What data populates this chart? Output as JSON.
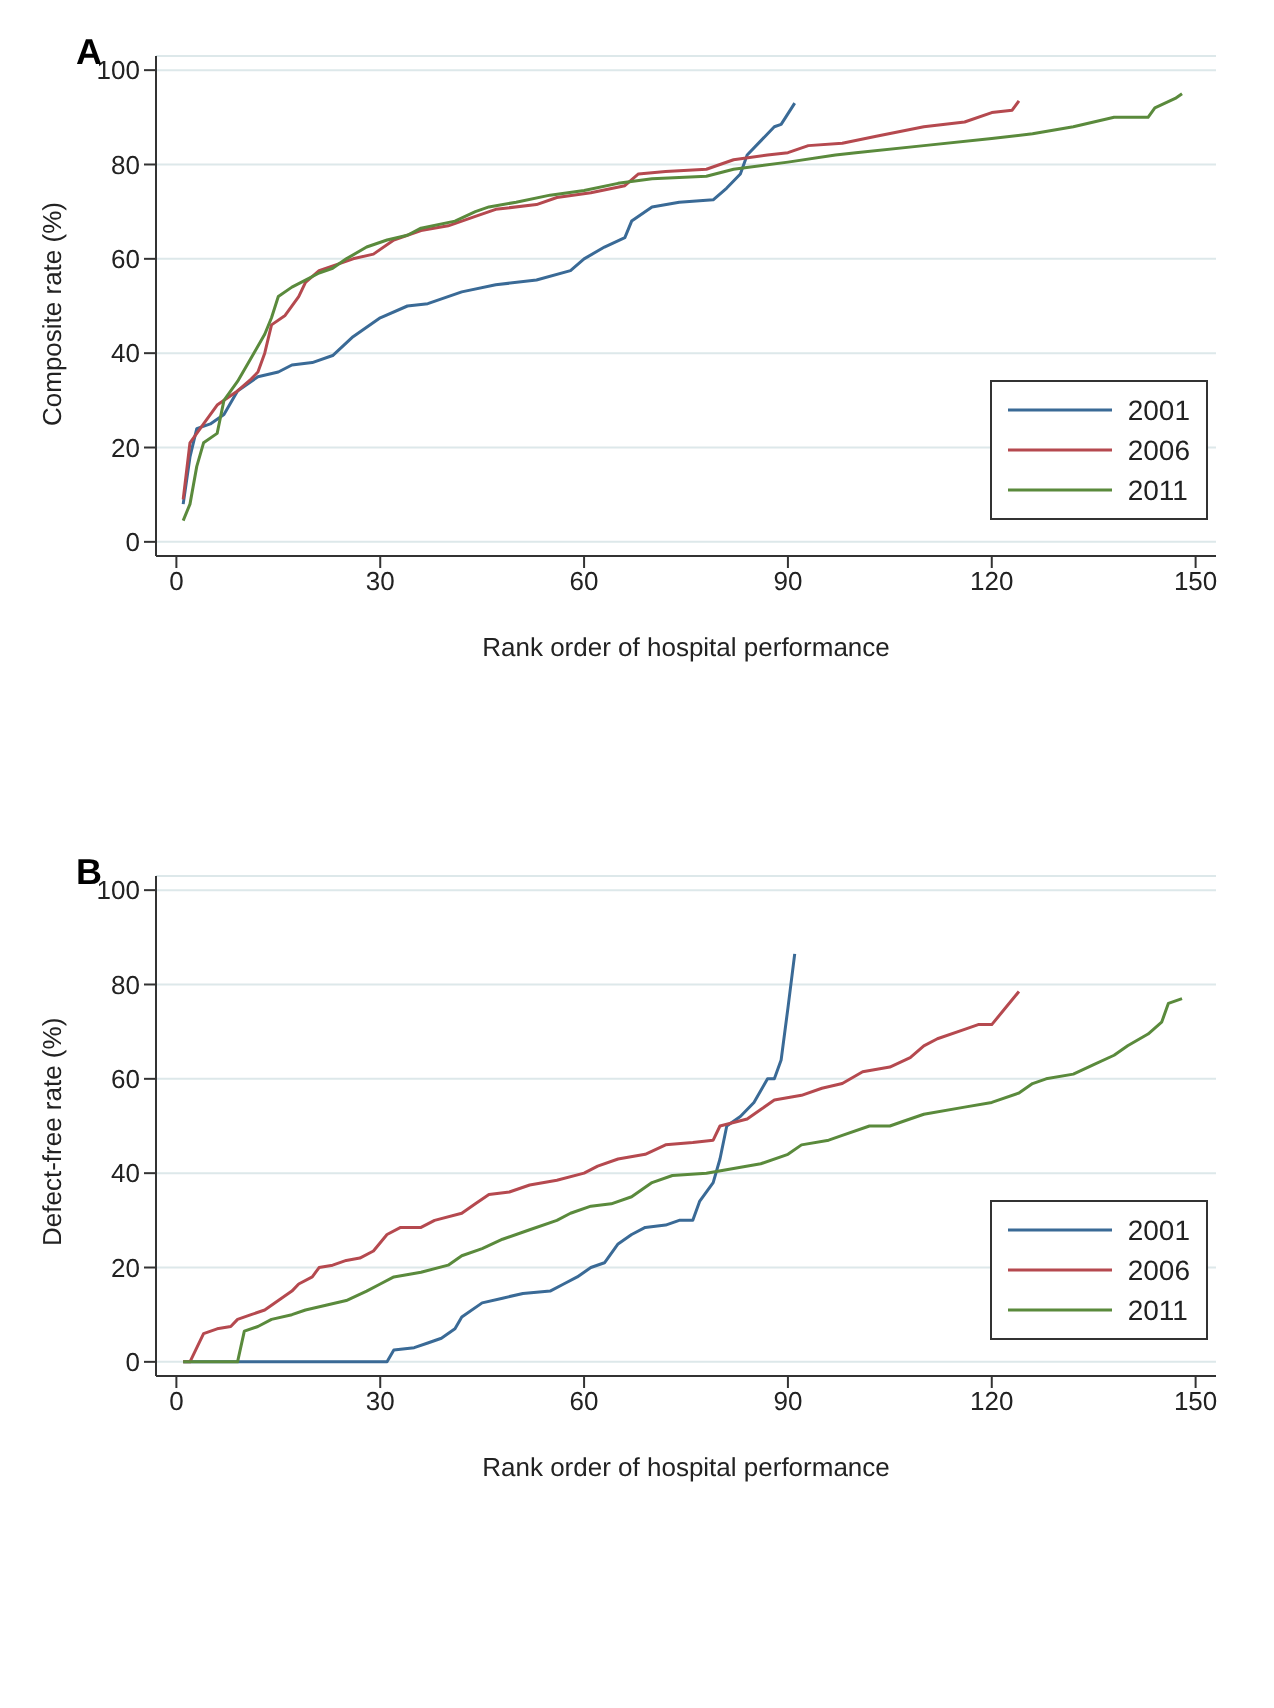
{
  "chart_data": [
    {
      "type": "line",
      "title": "A",
      "xlabel": "Rank order of hospital performance",
      "ylabel": "Composite rate (%)",
      "xlim": [
        -3,
        153
      ],
      "ylim": [
        -3,
        103
      ],
      "xticks": [
        0,
        30,
        60,
        90,
        120,
        150
      ],
      "yticks": [
        0,
        20,
        40,
        60,
        80,
        100
      ],
      "grid": "y",
      "legend": "bottom right",
      "marker": "none",
      "line_style": "solid",
      "series": [
        {
          "name": "2001",
          "color": "#3a6a96",
          "x": [
            1,
            2,
            3,
            5,
            7,
            9,
            12,
            15,
            17,
            20,
            23,
            26,
            30,
            34,
            37,
            42,
            47,
            53,
            58,
            60,
            63,
            66,
            67,
            70,
            74,
            79,
            81,
            83,
            84,
            86,
            88,
            89,
            91
          ],
          "values": [
            8,
            18,
            24,
            25,
            27,
            32,
            35,
            36,
            37.5,
            38,
            39.5,
            43.5,
            47.5,
            50,
            50.5,
            53,
            54.5,
            55.5,
            57.5,
            60,
            62.5,
            64.5,
            68,
            71,
            72,
            72.5,
            75,
            78,
            82,
            85,
            88,
            88.5,
            93
          ]
        },
        {
          "name": "2006",
          "color": "#b5494f",
          "x": [
            1,
            2,
            4,
            6,
            9,
            11,
            12,
            13,
            14,
            16,
            18,
            19,
            21,
            24,
            26,
            29,
            32,
            36,
            40,
            44,
            47,
            53,
            56,
            61,
            66,
            68,
            72,
            78,
            82,
            87,
            90,
            93,
            98,
            103,
            110,
            116,
            120,
            123,
            124
          ],
          "values": [
            9,
            21,
            25,
            29,
            32,
            34.5,
            36,
            40,
            46,
            48,
            52,
            55,
            57.5,
            59,
            60,
            61,
            64,
            66,
            67,
            69,
            70.5,
            71.5,
            73,
            74,
            75.5,
            78,
            78.5,
            79,
            81,
            82,
            82.5,
            84,
            84.5,
            86,
            88,
            89,
            91,
            91.5,
            93.5
          ]
        },
        {
          "name": "2011",
          "color": "#5a8a3c",
          "x": [
            1,
            2,
            3,
            4,
            6,
            7,
            9,
            11,
            13,
            14,
            15,
            17,
            19,
            21,
            23,
            25,
            28,
            31,
            34,
            36,
            41,
            44,
            46,
            50,
            55,
            60,
            65,
            70,
            78,
            82,
            90,
            97,
            100,
            110,
            120,
            126,
            132,
            138,
            143,
            144,
            147,
            148
          ],
          "values": [
            4.5,
            8,
            16,
            21,
            23,
            30,
            34,
            39,
            44,
            47.5,
            52,
            54,
            55.5,
            57,
            58,
            60,
            62.5,
            64,
            65,
            66.5,
            68,
            70,
            71,
            72,
            73.5,
            74.5,
            76,
            77,
            77.5,
            79,
            80.5,
            82,
            82.5,
            84,
            85.5,
            86.5,
            88,
            90,
            90,
            92,
            94,
            95
          ]
        }
      ]
    },
    {
      "type": "line",
      "title": "B",
      "xlabel": "Rank order of hospital performance",
      "ylabel": "Defect-free rate (%)",
      "xlim": [
        -3,
        153
      ],
      "ylim": [
        -3,
        103
      ],
      "xticks": [
        0,
        30,
        60,
        90,
        120,
        150
      ],
      "yticks": [
        0,
        20,
        40,
        60,
        80,
        100
      ],
      "grid": "y",
      "legend": "bottom right",
      "marker": "none",
      "line_style": "solid",
      "series": [
        {
          "name": "2001",
          "color": "#3a6a96",
          "x": [
            1,
            31,
            32,
            35,
            37,
            39,
            41,
            42,
            45,
            48,
            51,
            55,
            57,
            59,
            61,
            63,
            65,
            67,
            69,
            72,
            74,
            76,
            77,
            79,
            80,
            81,
            83,
            85,
            87,
            88,
            89,
            90,
            91
          ],
          "values": [
            0,
            0,
            2.5,
            3,
            4,
            5,
            7,
            9.5,
            12.5,
            13.5,
            14.5,
            15,
            16.5,
            18,
            20,
            21,
            25,
            27,
            28.5,
            29,
            30,
            30,
            34,
            38,
            43,
            50,
            52,
            55,
            60,
            60,
            64,
            75,
            86.5
          ]
        },
        {
          "name": "2006",
          "color": "#b5494f",
          "x": [
            1,
            2,
            4,
            6,
            8,
            9,
            11,
            13,
            15,
            17,
            18,
            20,
            21,
            23,
            25,
            27,
            29,
            31,
            33,
            36,
            38,
            42,
            44,
            46,
            49,
            52,
            56,
            60,
            62,
            65,
            69,
            72,
            76,
            79,
            80,
            84,
            86,
            88,
            92,
            95,
            98,
            101,
            105,
            108,
            110,
            112,
            116,
            118,
            120,
            122,
            124
          ],
          "values": [
            0,
            0,
            6,
            7,
            7.5,
            9,
            10,
            11,
            13,
            15,
            16.5,
            18,
            20,
            20.5,
            21.5,
            22,
            23.5,
            27,
            28.5,
            28.5,
            30,
            31.5,
            33.5,
            35.5,
            36,
            37.5,
            38.5,
            40,
            41.5,
            43,
            44,
            46,
            46.5,
            47,
            50,
            51.5,
            53.5,
            55.5,
            56.5,
            58,
            59,
            61.5,
            62.5,
            64.5,
            67,
            68.5,
            70.5,
            71.5,
            71.5,
            75,
            78.5
          ]
        },
        {
          "name": "2011",
          "color": "#5a8a3c",
          "x": [
            1,
            9,
            10,
            12,
            14,
            17,
            19,
            22,
            25,
            28,
            30,
            32,
            36,
            40,
            42,
            45,
            48,
            52,
            56,
            58,
            61,
            64,
            67,
            70,
            73,
            78,
            82,
            86,
            90,
            92,
            96,
            98,
            102,
            105,
            107,
            110,
            116,
            120,
            124,
            126,
            128,
            132,
            135,
            138,
            140,
            143,
            145,
            146,
            148
          ],
          "values": [
            0,
            0,
            6.5,
            7.5,
            9,
            10,
            11,
            12,
            13,
            15,
            16.5,
            18,
            19,
            20.5,
            22.5,
            24,
            26,
            28,
            30,
            31.5,
            33,
            33.5,
            35,
            38,
            39.5,
            40,
            41,
            42,
            44,
            46,
            47,
            48,
            50,
            50,
            51,
            52.5,
            54,
            55,
            57,
            59,
            60,
            61,
            63,
            65,
            67,
            69.5,
            72,
            76,
            77
          ]
        }
      ]
    }
  ]
}
